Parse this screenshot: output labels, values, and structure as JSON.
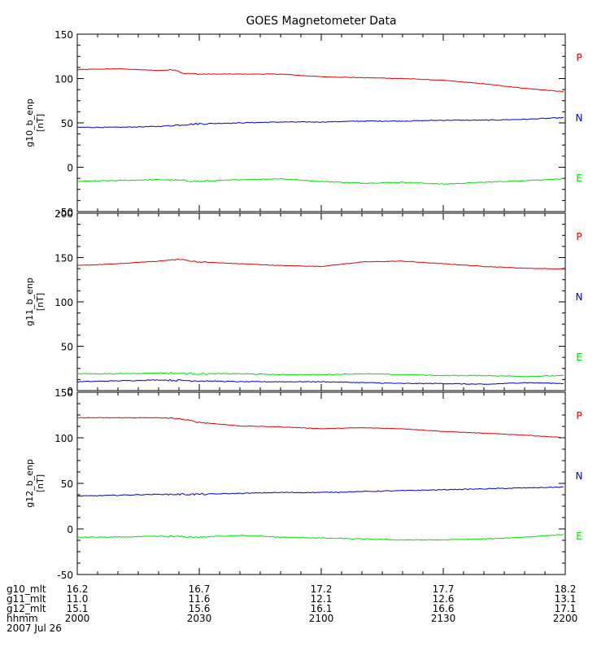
{
  "chart_data": {
    "type": "line",
    "title": "GOES Magnetometer Data",
    "x_ticks": [
      "2000",
      "2030",
      "2100",
      "2130",
      "2200"
    ],
    "xlim": [
      0,
      120
    ],
    "colors": {
      "P": "#e00000",
      "N": "#0000c8",
      "E": "#00e000"
    },
    "legend_labels": [
      "P",
      "N",
      "E"
    ],
    "panels": [
      {
        "ylabel": "g10_b_enp",
        "yunit": "[nT]",
        "ylim": [
          -50,
          150
        ],
        "yticks": [
          "150",
          "100",
          "50",
          "0",
          "-50"
        ],
        "series": [
          {
            "key": "P",
            "x": [
              0,
              10,
              20,
              24,
              26,
              30,
              40,
              50,
              60,
              70,
              80,
              90,
              100,
              110,
              120
            ],
            "y": [
              110,
              111,
              109,
              110,
              106,
              105,
              105,
              105,
              102,
              101,
              100,
              98,
              94,
              89,
              85
            ]
          },
          {
            "key": "N",
            "x": [
              0,
              10,
              20,
              26,
              30,
              40,
              50,
              60,
              70,
              80,
              90,
              100,
              110,
              120
            ],
            "y": [
              45,
              45,
              46,
              48,
              49,
              50,
              51,
              51,
              52,
              52,
              53,
              53,
              54,
              56
            ]
          },
          {
            "key": "E",
            "x": [
              0,
              10,
              20,
              26,
              30,
              40,
              50,
              60,
              70,
              80,
              90,
              100,
              110,
              120
            ],
            "y": [
              -16,
              -15,
              -14,
              -15,
              -16,
              -14,
              -13,
              -16,
              -18,
              -17,
              -19,
              -17,
              -15,
              -13
            ]
          }
        ]
      },
      {
        "ylabel": "g11_b_enp",
        "yunit": "[nT]",
        "ylim": [
          0,
          200
        ],
        "yticks": [
          "200",
          "150",
          "100",
          "50",
          "0"
        ],
        "series": [
          {
            "key": "P",
            "x": [
              0,
              10,
              20,
              25,
              30,
              40,
              50,
              60,
              70,
              80,
              90,
              100,
              110,
              120
            ],
            "y": [
              141,
              143,
              146,
              148,
              145,
              143,
              141,
              140,
              145,
              146,
              143,
              140,
              138,
              137
            ]
          },
          {
            "key": "N",
            "x": [
              0,
              10,
              20,
              30,
              40,
              50,
              60,
              70,
              80,
              90,
              100,
              110,
              120
            ],
            "y": [
              10,
              11,
              12,
              11,
              10,
              10,
              10,
              9,
              8,
              8,
              7,
              9,
              8
            ]
          },
          {
            "key": "E",
            "x": [
              0,
              10,
              20,
              30,
              40,
              50,
              60,
              70,
              80,
              90,
              100,
              110,
              120
            ],
            "y": [
              19,
              19,
              20,
              19,
              19,
              18,
              18,
              19,
              18,
              17,
              17,
              16,
              17
            ]
          }
        ]
      },
      {
        "ylabel": "g12_b_enp",
        "yunit": "[nT]",
        "ylim": [
          -50,
          150
        ],
        "yticks": [
          "150",
          "100",
          "50",
          "0",
          "-50"
        ],
        "series": [
          {
            "key": "P",
            "x": [
              0,
              10,
              20,
              25,
              30,
              40,
              50,
              60,
              70,
              80,
              90,
              100,
              110,
              120
            ],
            "y": [
              122,
              122,
              122,
              121,
              117,
              113,
              112,
              110,
              111,
              110,
              107,
              105,
              103,
              100
            ]
          },
          {
            "key": "N",
            "x": [
              0,
              10,
              20,
              30,
              40,
              50,
              60,
              70,
              80,
              90,
              100,
              110,
              120
            ],
            "y": [
              36,
              37,
              38,
              38,
              39,
              40,
              40,
              41,
              42,
              43,
              44,
              45,
              46
            ]
          },
          {
            "key": "E",
            "x": [
              0,
              10,
              20,
              30,
              40,
              50,
              60,
              70,
              80,
              90,
              100,
              110,
              120
            ],
            "y": [
              -9,
              -9,
              -8,
              -9,
              -7,
              -9,
              -10,
              -11,
              -12,
              -12,
              -11,
              -9,
              -6
            ]
          }
        ]
      }
    ],
    "footer": {
      "rows": [
        {
          "label": "g10_mlt",
          "values": [
            "16.2",
            "16.7",
            "17.2",
            "17.7",
            "18.2"
          ]
        },
        {
          "label": "g11_mlt",
          "values": [
            "11.0",
            "11.6",
            "12.1",
            "12.6",
            "13.1"
          ]
        },
        {
          "label": "g12_mlt",
          "values": [
            "15.1",
            "15.6",
            "16.1",
            "16.6",
            "17.1"
          ]
        },
        {
          "label": "hhmm",
          "values": [
            "2000",
            "2030",
            "2100",
            "2130",
            "2200"
          ]
        }
      ],
      "date": "2007 Jul 26"
    }
  }
}
